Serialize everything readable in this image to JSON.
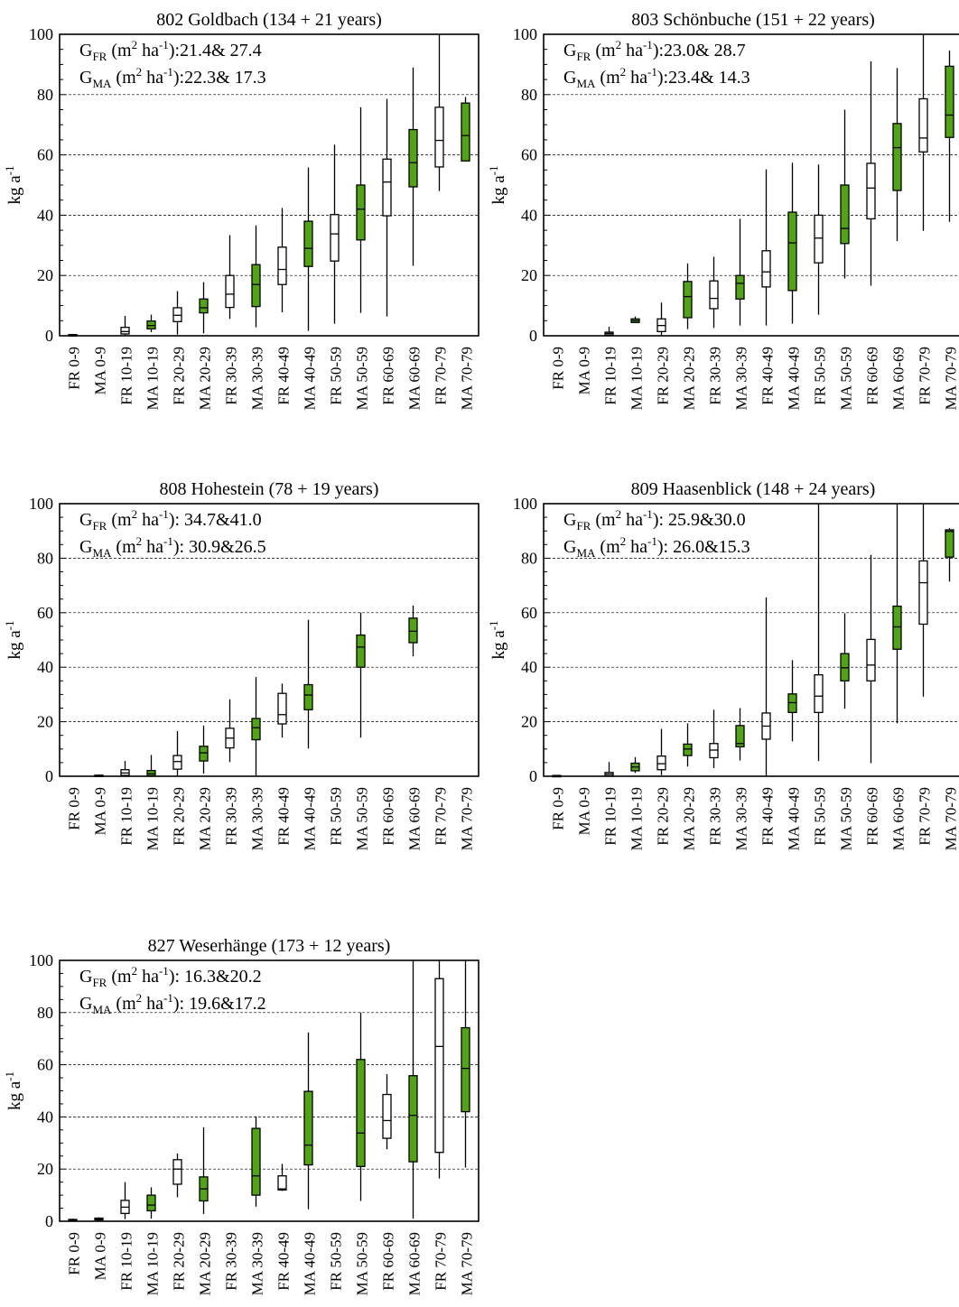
{
  "figure": {
    "ylabel": "kg a",
    "ylabel_sup": "-1"
  },
  "chart_data": [
    {
      "type": "box",
      "title": "802 Goldbach (134 + 21 years)",
      "annotations": [
        {
          "prefix": "G",
          "sub": "FR",
          "unit": " (m",
          "sup1": "2",
          "mid": " ha",
          "sup2": "-1",
          "tail": "):21.4& 27.4"
        },
        {
          "prefix": "G",
          "sub": "MA",
          "unit": " (m",
          "sup1": "2",
          "mid": " ha",
          "sup2": "-1",
          "tail": "):22.3& 17.3"
        }
      ],
      "ylabel": "kg a-1",
      "ylim": [
        0,
        100
      ],
      "yticks": [
        0,
        20,
        40,
        60,
        80,
        100
      ],
      "grid": "horizontal dashed at 20,40,60,80",
      "categories": [
        "FR 0-9",
        "MA 0-9",
        "FR 10-19",
        "MA 10-19",
        "FR 20-29",
        "MA 20-29",
        "FR 30-39",
        "MA 30-39",
        "FR 40-49",
        "MA 40-49",
        "FR 50-59",
        "MA 50-59",
        "FR 60-69",
        "MA 60-69",
        "FR 70-79",
        "MA 70-79"
      ],
      "series": [
        {
          "name": "FR",
          "color": "#ffffff"
        },
        {
          "name": "MA",
          "color": "#52a317"
        }
      ],
      "boxes": [
        {
          "min": 0,
          "q1": 0.1,
          "median": 0.2,
          "q3": 0.4,
          "max": 0.6
        },
        null,
        {
          "min": 0.2,
          "q1": 0.6,
          "median": 1.4,
          "q3": 2.8,
          "max": 6.6
        },
        {
          "min": 1.2,
          "q1": 2.3,
          "median": 3.4,
          "q3": 4.9,
          "max": 7
        },
        {
          "min": 0.4,
          "q1": 4.7,
          "median": 6.8,
          "q3": 9.3,
          "max": 14.8
        },
        {
          "min": 0.8,
          "q1": 7.6,
          "median": 9.3,
          "q3": 12.2,
          "max": 17.8
        },
        {
          "min": 5.6,
          "q1": 9.4,
          "median": 13.8,
          "q3": 20,
          "max": 33.4
        },
        {
          "min": 2.8,
          "q1": 9.7,
          "median": 17,
          "q3": 23.6,
          "max": 36.6
        },
        {
          "min": 7.8,
          "q1": 17,
          "median": 22,
          "q3": 29.4,
          "max": 42.4
        },
        {
          "min": 1.6,
          "q1": 23,
          "median": 29,
          "q3": 38,
          "max": 55.8
        },
        {
          "min": 4,
          "q1": 24.8,
          "median": 33.8,
          "q3": 40.2,
          "max": 63.4
        },
        {
          "min": 7.6,
          "q1": 31.8,
          "median": 42,
          "q3": 50,
          "max": 75.8
        },
        {
          "min": 6.4,
          "q1": 39.8,
          "median": 51,
          "q3": 58.6,
          "max": 78.6
        },
        {
          "min": 23.2,
          "q1": 49.4,
          "median": 57.4,
          "q3": 68.4,
          "max": 89
        },
        {
          "min": 48,
          "q1": 56,
          "median": 64.8,
          "q3": 75.8,
          "max": 100
        },
        {
          "min": 58,
          "q1": 58,
          "median": 66.4,
          "q3": 77.2,
          "max": 79.2
        }
      ]
    },
    {
      "type": "box",
      "title": "803 Schönbuche (151 + 22 years)",
      "annotations": [
        {
          "prefix": "G",
          "sub": "FR",
          "unit": " (m",
          "sup1": "2",
          "mid": " ha",
          "sup2": "-1",
          "tail": "):23.0& 28.7"
        },
        {
          "prefix": "G",
          "sub": "MA",
          "unit": " (m",
          "sup1": "2",
          "mid": " ha",
          "sup2": "-1",
          "tail": "):23.4& 14.3"
        }
      ],
      "ylabel": "kg a-1",
      "ylim": [
        0,
        100
      ],
      "yticks": [
        0,
        20,
        40,
        60,
        80,
        100
      ],
      "grid": "horizontal dashed at 20,40,60,80",
      "categories": [
        "FR 0-9",
        "MA 0-9",
        "FR 10-19",
        "MA 10-19",
        "FR 20-29",
        "MA 20-29",
        "FR 30-39",
        "MA 30-39",
        "FR 40-49",
        "MA 40-49",
        "FR 50-59",
        "MA 50-59",
        "FR 60-69",
        "MA 60-69",
        "FR 70-79",
        "MA 70-79"
      ],
      "series": [
        {
          "name": "FR",
          "color": "#ffffff"
        },
        {
          "name": "MA",
          "color": "#52a317"
        }
      ],
      "boxes": [
        null,
        null,
        {
          "min": 0,
          "q1": 0.3,
          "median": 0.8,
          "q3": 1.2,
          "max": 3
        },
        {
          "min": 4.2,
          "q1": 4.4,
          "median": 5,
          "q3": 5.6,
          "max": 6.4
        },
        {
          "min": 0.2,
          "q1": 1.4,
          "median": 3.4,
          "q3": 5.6,
          "max": 11
        },
        {
          "min": 2.2,
          "q1": 6,
          "median": 13,
          "q3": 18,
          "max": 24
        },
        {
          "min": 2.6,
          "q1": 9,
          "median": 12.4,
          "q3": 18.2,
          "max": 26.2
        },
        {
          "min": 3.4,
          "q1": 12.2,
          "median": 17.4,
          "q3": 20,
          "max": 38.8
        },
        {
          "min": 3.4,
          "q1": 16.2,
          "median": 21.2,
          "q3": 28.2,
          "max": 55.2
        },
        {
          "min": 4,
          "q1": 15,
          "median": 30.8,
          "q3": 41,
          "max": 57.4
        },
        {
          "min": 7,
          "q1": 24.2,
          "median": 32.4,
          "q3": 40,
          "max": 56.8
        },
        {
          "min": 19,
          "q1": 30.6,
          "median": 35.6,
          "q3": 50,
          "max": 75
        },
        {
          "min": 16.6,
          "q1": 38.8,
          "median": 49,
          "q3": 57.2,
          "max": 91
        },
        {
          "min": 31.4,
          "q1": 48.2,
          "median": 62.4,
          "q3": 70.4,
          "max": 88.8
        },
        {
          "min": 34.8,
          "q1": 61,
          "median": 65.6,
          "q3": 78.6,
          "max": 100
        },
        {
          "min": 37.8,
          "q1": 65.8,
          "median": 73.2,
          "q3": 89.4,
          "max": 94.6
        }
      ]
    },
    {
      "type": "box",
      "title": "808 Hohestein (78 + 19 years)",
      "annotations": [
        {
          "prefix": "G",
          "sub": "FR",
          "unit": " (m",
          "sup1": "2",
          "mid": " ha",
          "sup2": "-1",
          "tail": "): 34.7&41.0"
        },
        {
          "prefix": "G",
          "sub": "MA",
          "unit": " (m",
          "sup1": "2",
          "mid": " ha",
          "sup2": "-1",
          "tail": "): 30.9&26.5"
        }
      ],
      "ylabel": "kg a-1",
      "ylim": [
        0,
        100
      ],
      "yticks": [
        0,
        20,
        40,
        60,
        80,
        100
      ],
      "grid": "horizontal dashed at 20,40,60,80",
      "categories": [
        "FR 0-9",
        "MA 0-9",
        "FR 10-19",
        "MA 10-19",
        "FR 20-29",
        "MA 20-29",
        "FR 30-39",
        "MA 30-39",
        "FR 40-49",
        "MA 40-49",
        "FR 50-59",
        "MA 50-59",
        "FR 60-69",
        "MA 60-69",
        "FR 70-79",
        "MA 70-79"
      ],
      "series": [
        {
          "name": "FR",
          "color": "#ffffff"
        },
        {
          "name": "MA",
          "color": "#52a317"
        }
      ],
      "boxes": [
        null,
        {
          "min": 0,
          "q1": 0.1,
          "median": 0.2,
          "q3": 0.4,
          "max": 0.6
        },
        {
          "min": 0,
          "q1": 0.3,
          "median": 1.2,
          "q3": 2.4,
          "max": 5.6
        },
        {
          "min": 0,
          "q1": 0.2,
          "median": 0.9,
          "q3": 2.1,
          "max": 7.8
        },
        {
          "min": 0.2,
          "q1": 2.6,
          "median": 5.4,
          "q3": 7.6,
          "max": 16.6
        },
        {
          "min": 1,
          "q1": 5.6,
          "median": 8.6,
          "q3": 11,
          "max": 18.6
        },
        {
          "min": 5.2,
          "q1": 10.4,
          "median": 14,
          "q3": 17.6,
          "max": 28.2
        },
        {
          "min": 0,
          "q1": 13.4,
          "median": 17.8,
          "q3": 21.2,
          "max": 36.4
        },
        {
          "min": 14.2,
          "q1": 19.2,
          "median": 22.6,
          "q3": 30.4,
          "max": 34
        },
        {
          "min": 10.2,
          "q1": 24.4,
          "median": 29.8,
          "q3": 33.6,
          "max": 57.4
        },
        null,
        {
          "min": 14.2,
          "q1": 40,
          "median": 47.4,
          "q3": 51.8,
          "max": 60
        },
        null,
        {
          "min": 44,
          "q1": 49,
          "median": 53.2,
          "q3": 58,
          "max": 62.6
        },
        null,
        null
      ]
    },
    {
      "type": "box",
      "title": "809 Haasenblick (148 + 24 years)",
      "annotations": [
        {
          "prefix": "G",
          "sub": "FR",
          "unit": " (m",
          "sup1": "2",
          "mid": " ha",
          "sup2": "-1",
          "tail": "): 25.9&30.0"
        },
        {
          "prefix": "G",
          "sub": "MA",
          "unit": " (m",
          "sup1": "2",
          "mid": " ha",
          "sup2": "-1",
          "tail": "): 26.0&15.3"
        }
      ],
      "ylabel": "kg a-1",
      "ylim": [
        0,
        100
      ],
      "yticks": [
        0,
        20,
        40,
        60,
        80,
        100
      ],
      "grid": "horizontal dashed at 20,40,60,80",
      "categories": [
        "FR 0-9",
        "MA 0-9",
        "FR 10-19",
        "MA 10-19",
        "FR 20-29",
        "MA 20-29",
        "FR 30-39",
        "MA 30-39",
        "FR 40-49",
        "MA 40-49",
        "FR 50-59",
        "MA 50-59",
        "FR 60-69",
        "MA 60-69",
        "FR 70-79",
        "MA 70-79"
      ],
      "series": [
        {
          "name": "FR",
          "color": "#ffffff"
        },
        {
          "name": "MA",
          "color": "#52a317"
        }
      ],
      "boxes": [
        {
          "min": 0,
          "q1": 0.1,
          "median": 0.2,
          "q3": 0.3,
          "max": 0.5
        },
        null,
        {
          "min": 0,
          "q1": 0.2,
          "median": 0.8,
          "q3": 1.4,
          "max": 5.2
        },
        {
          "min": 1.2,
          "q1": 2,
          "median": 3.4,
          "q3": 4.8,
          "max": 7
        },
        {
          "min": 0.4,
          "q1": 2.4,
          "median": 4.6,
          "q3": 7.4,
          "max": 17.4
        },
        {
          "min": 3.6,
          "q1": 7.6,
          "median": 10,
          "q3": 11.8,
          "max": 19.4
        },
        {
          "min": 3,
          "q1": 6.8,
          "median": 9.6,
          "q3": 12,
          "max": 24.4
        },
        {
          "min": 5.8,
          "q1": 10.8,
          "median": 12,
          "q3": 18.6,
          "max": 25
        },
        {
          "min": 0,
          "q1": 13.6,
          "median": 18.4,
          "q3": 23.2,
          "max": 65.6
        },
        {
          "min": 12.8,
          "q1": 23.4,
          "median": 27,
          "q3": 30.2,
          "max": 42.6
        },
        {
          "min": 5.6,
          "q1": 23.4,
          "median": 29.4,
          "q3": 37.2,
          "max": 100
        },
        {
          "min": 24.8,
          "q1": 35,
          "median": 39.8,
          "q3": 45,
          "max": 59.8
        },
        {
          "min": 4.8,
          "q1": 35,
          "median": 40.8,
          "q3": 50.2,
          "max": 81.2
        },
        {
          "min": 19.4,
          "q1": 46.6,
          "median": 54.8,
          "q3": 62.4,
          "max": 100
        },
        {
          "min": 29.2,
          "q1": 55.8,
          "median": 71,
          "q3": 79,
          "max": 100
        },
        {
          "min": 71.4,
          "q1": 80.4,
          "median": 89.8,
          "q3": 90.4,
          "max": 91
        }
      ]
    },
    {
      "type": "box",
      "title": "827 Weserhänge (173 + 12 years)",
      "annotations": [
        {
          "prefix": "G",
          "sub": "FR",
          "unit": " (m",
          "sup1": "2",
          "mid": " ha",
          "sup2": "-1",
          "tail": "): 16.3&20.2"
        },
        {
          "prefix": "G",
          "sub": "MA",
          "unit": " (m",
          "sup1": "2",
          "mid": " ha",
          "sup2": "-1",
          "tail": "): 19.6&17.2"
        }
      ],
      "ylabel": "kg a-1",
      "ylim": [
        0,
        100
      ],
      "yticks": [
        0,
        20,
        40,
        60,
        80,
        100
      ],
      "grid": "horizontal dashed at 20,40,60,80",
      "categories": [
        "FR 0-9",
        "MA 0-9",
        "FR 10-19",
        "MA 10-19",
        "FR 20-29",
        "MA 20-29",
        "FR 30-39",
        "MA 30-39",
        "FR 40-49",
        "MA 40-49",
        "FR 50-59",
        "MA 50-59",
        "FR 60-69",
        "MA 60-69",
        "FR 70-79",
        "MA 70-79"
      ],
      "series": [
        {
          "name": "FR",
          "color": "#ffffff"
        },
        {
          "name": "MA",
          "color": "#52a317"
        }
      ],
      "boxes": [
        {
          "min": 0,
          "q1": 0.2,
          "median": 0.4,
          "q3": 0.7,
          "max": 1
        },
        {
          "min": 0.2,
          "q1": 0.5,
          "median": 0.9,
          "q3": 1.2,
          "max": 1.5
        },
        {
          "min": 0.8,
          "q1": 3,
          "median": 5.4,
          "q3": 8,
          "max": 15
        },
        {
          "min": 1,
          "q1": 4,
          "median": 6.2,
          "q3": 10,
          "max": 13
        },
        {
          "min": 9.2,
          "q1": 14.2,
          "median": 20,
          "q3": 23.6,
          "max": 26
        },
        {
          "min": 2.8,
          "q1": 7.8,
          "median": 12.4,
          "q3": 17,
          "max": 36
        },
        null,
        {
          "min": 5.6,
          "q1": 10,
          "median": 17.4,
          "q3": 35.6,
          "max": 40.2
        },
        {
          "min": 11.6,
          "q1": 12,
          "median": 12.4,
          "q3": 17.4,
          "max": 22
        },
        {
          "min": 4.6,
          "q1": 21.6,
          "median": 29.2,
          "q3": 49.8,
          "max": 72.4
        },
        null,
        {
          "min": 7.8,
          "q1": 21,
          "median": 33.8,
          "q3": 62,
          "max": 80
        },
        {
          "min": 27.6,
          "q1": 31.8,
          "median": 38.6,
          "q3": 48.6,
          "max": 56.4
        },
        {
          "min": 1,
          "q1": 22.8,
          "median": 40.6,
          "q3": 55.8,
          "max": 100
        },
        {
          "min": 16.4,
          "q1": 26.4,
          "median": 67,
          "q3": 93,
          "max": 100
        },
        {
          "min": 20.6,
          "q1": 42,
          "median": 58.6,
          "q3": 74.2,
          "max": 100
        }
      ]
    }
  ]
}
